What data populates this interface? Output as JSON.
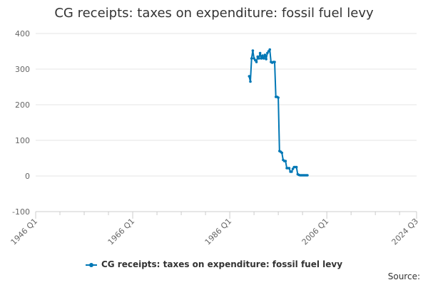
{
  "chart_data": {
    "type": "line",
    "title": "CG receipts: taxes on expenditure: fossil fuel levy",
    "xlabel": "",
    "ylabel": "",
    "ylim": [
      -100,
      400
    ],
    "yticks": [
      -100,
      0,
      100,
      200,
      300,
      400
    ],
    "xlim": [
      1946.0,
      2024.5
    ],
    "xticks": [
      {
        "label": "1946 Q1",
        "value": 1946.0
      },
      {
        "label": "1966 Q1",
        "value": 1966.0
      },
      {
        "label": "1986 Q1",
        "value": 1986.0
      },
      {
        "label": "2006 Q1",
        "value": 2006.0
      },
      {
        "label": "2024 Q3",
        "value": 2024.5
      }
    ],
    "minor_xticks": [
      1951,
      1956,
      1961,
      1971,
      1976,
      1981,
      1991,
      1996,
      2001,
      2011,
      2016,
      2021
    ],
    "grid": true,
    "legend_position": "bottom",
    "series": [
      {
        "name": "CG receipts: taxes on expenditure: fossil fuel levy",
        "color": "#0077b5",
        "x": [
          1990.0,
          1990.25,
          1990.5,
          1990.75,
          1991.0,
          1991.25,
          1991.5,
          1991.75,
          1992.0,
          1992.25,
          1992.5,
          1992.75,
          1993.0,
          1993.25,
          1993.5,
          1993.75,
          1994.0,
          1994.25,
          1994.5,
          1994.75,
          1995.0,
          1995.25,
          1995.5,
          1995.75,
          1996.0,
          1996.25,
          1996.5,
          1996.75,
          1997.0,
          1997.25,
          1997.5,
          1997.75,
          1998.0,
          1998.25,
          1998.5,
          1998.75,
          1999.0,
          1999.25,
          1999.5,
          1999.75,
          2000.0,
          2000.25,
          2000.5,
          2000.75,
          2001.0,
          2001.25,
          2001.5,
          2001.75,
          2002.0
        ],
        "y": [
          280,
          265,
          330,
          352,
          330,
          325,
          320,
          335,
          330,
          345,
          330,
          338,
          330,
          340,
          328,
          345,
          350,
          355,
          320,
          318,
          320,
          320,
          222,
          222,
          220,
          70,
          68,
          65,
          45,
          42,
          42,
          22,
          22,
          22,
          12,
          12,
          20,
          25,
          25,
          25,
          5,
          3,
          2,
          2,
          2,
          2,
          2,
          2,
          2
        ]
      }
    ],
    "source_label": "Source:"
  }
}
